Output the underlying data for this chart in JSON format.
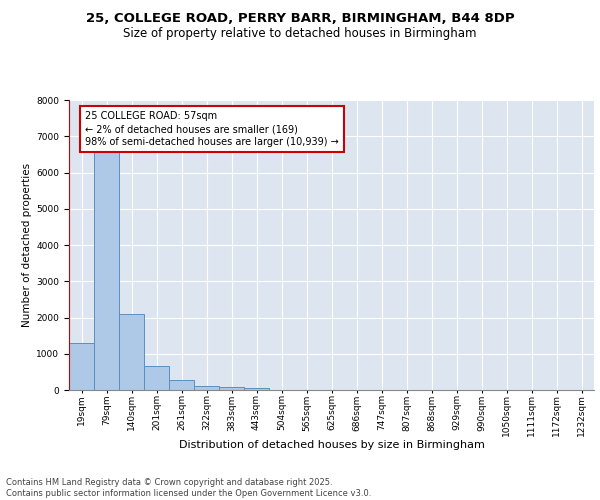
{
  "title_line1": "25, COLLEGE ROAD, PERRY BARR, BIRMINGHAM, B44 8DP",
  "title_line2": "Size of property relative to detached houses in Birmingham",
  "xlabel": "Distribution of detached houses by size in Birmingham",
  "ylabel": "Number of detached properties",
  "footer": "Contains HM Land Registry data © Crown copyright and database right 2025.\nContains public sector information licensed under the Open Government Licence v3.0.",
  "annotation_title": "25 COLLEGE ROAD: 57sqm",
  "annotation_line1": "← 2% of detached houses are smaller (169)",
  "annotation_line2": "98% of semi-detached houses are larger (10,939) →",
  "bar_labels": [
    "19sqm",
    "79sqm",
    "140sqm",
    "201sqm",
    "261sqm",
    "322sqm",
    "383sqm",
    "443sqm",
    "504sqm",
    "565sqm",
    "625sqm",
    "686sqm",
    "747sqm",
    "807sqm",
    "868sqm",
    "929sqm",
    "990sqm",
    "1050sqm",
    "1111sqm",
    "1172sqm",
    "1232sqm"
  ],
  "bar_values": [
    1300,
    6650,
    2100,
    650,
    280,
    120,
    90,
    50,
    0,
    0,
    0,
    0,
    0,
    0,
    0,
    0,
    0,
    0,
    0,
    0,
    0
  ],
  "bar_color": "#aec8e8",
  "bar_edge_color": "#5a8fc0",
  "vline_color": "#cc0000",
  "annotation_box_color": "#cc0000",
  "background_color": "#dde6f0",
  "ylim": [
    0,
    8000
  ],
  "yticks": [
    0,
    1000,
    2000,
    3000,
    4000,
    5000,
    6000,
    7000,
    8000
  ],
  "grid_color": "#ffffff",
  "title_fontsize": 9.5,
  "subtitle_fontsize": 8.5,
  "ylabel_fontsize": 7.5,
  "xlabel_fontsize": 8,
  "tick_fontsize": 6.5,
  "annotation_fontsize": 7,
  "footer_fontsize": 6
}
